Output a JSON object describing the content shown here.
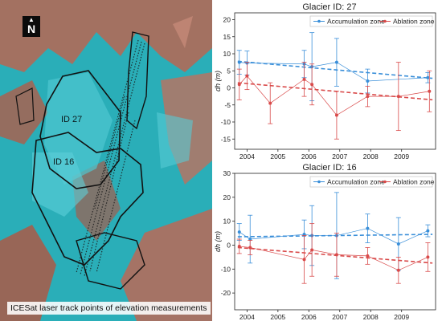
{
  "map": {
    "north_label": "N",
    "north_arrow": "north-arrow-icon",
    "glacier_labels": [
      "ID 27",
      "ID 16"
    ],
    "caption": "ICESat laser track points of elevation measurements"
  },
  "colors": {
    "accumulation": "#3a8fd9",
    "ablation": "#d94a4a",
    "ice": "#2fb6c2",
    "rock": "#b26e5a"
  },
  "chart_data": [
    {
      "type": "line",
      "title": "Glacier ID: 27",
      "ylabel": "dh (m)",
      "ylim": [
        -18,
        22
      ],
      "xlim": [
        2003.6,
        2010.1
      ],
      "yticks": [
        -15,
        -10,
        -5,
        0,
        5,
        10,
        15,
        20
      ],
      "xticks": [
        2004,
        2005,
        2006,
        2007,
        2008,
        2009
      ],
      "legend_position": "top-right",
      "series": [
        {
          "name": "Accumulation zone",
          "x": [
            2003.75,
            2004.0,
            2005.85,
            2006.1,
            2006.9,
            2007.9,
            2009.85
          ],
          "y": [
            7.5,
            7.3,
            7.0,
            6.2,
            7.5,
            2.0,
            3.0
          ],
          "err": [
            3.5,
            3.5,
            4.0,
            10.0,
            7.0,
            3.5,
            1.5
          ],
          "trend": [
            7.8,
            2.8
          ]
        },
        {
          "name": "Ablation zone",
          "x": [
            2003.75,
            2004.0,
            2004.75,
            2005.85,
            2006.1,
            2006.9,
            2007.9,
            2008.9,
            2009.9
          ],
          "y": [
            1.0,
            3.5,
            -4.5,
            2.5,
            1.0,
            -8.0,
            -2.5,
            -2.5,
            -1.0
          ],
          "err": [
            4.5,
            4.0,
            6.0,
            5.0,
            6.0,
            7.0,
            3.0,
            10.0,
            6.0
          ],
          "trend": [
            1.5,
            -3.5
          ]
        }
      ]
    },
    {
      "type": "line",
      "title": "Glacier ID: 16",
      "ylabel": "dh (m)",
      "ylim": [
        -27,
        30
      ],
      "xlim": [
        2003.6,
        2010.1
      ],
      "yticks": [
        -20,
        -10,
        0,
        10,
        20,
        30
      ],
      "xticks": [
        2004,
        2005,
        2006,
        2007,
        2008,
        2009
      ],
      "legend_position": "top-right",
      "series": [
        {
          "name": "Accumulation zone",
          "x": [
            2003.75,
            2004.1,
            2005.85,
            2006.1,
            2006.9,
            2007.9,
            2008.9,
            2009.85
          ],
          "y": [
            5.5,
            2.5,
            4.5,
            4.0,
            4.0,
            7.0,
            0.5,
            6.0
          ],
          "err": [
            3.5,
            10.0,
            6.0,
            12.5,
            18.0,
            6.0,
            11.0,
            2.5
          ],
          "trend": [
            3.5,
            4.5
          ]
        },
        {
          "name": "Ablation zone",
          "x": [
            2003.75,
            2004.1,
            2005.85,
            2006.1,
            2006.9,
            2007.9,
            2008.9,
            2009.85
          ],
          "y": [
            -0.5,
            -1.0,
            -6.0,
            -2.0,
            -4.0,
            -4.5,
            -10.5,
            -5.0
          ],
          "err": [
            3.0,
            3.0,
            10.0,
            11.0,
            9.0,
            3.5,
            5.5,
            6.0
          ],
          "trend": [
            -1.0,
            -7.5
          ]
        }
      ]
    }
  ]
}
